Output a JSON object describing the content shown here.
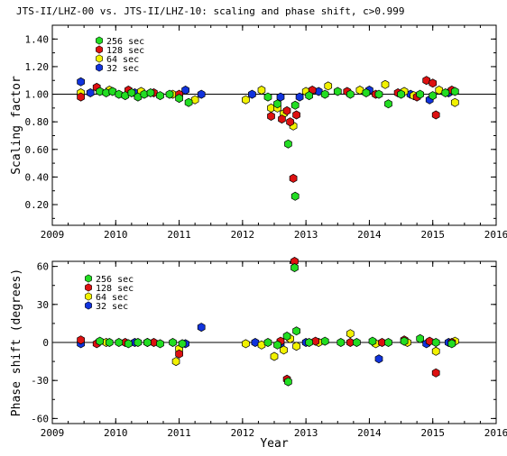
{
  "title": "JTS-II/LHZ-00 vs. JTS-II/LHZ-10: scaling and phase shift, c>0.999",
  "colors": {
    "256 sec": "#22dd22",
    "128 sec": "#dd1111",
    "64 sec": "#f2f200",
    "32 sec": "#1133dd",
    "outline": "#000000"
  },
  "chart_data": [
    {
      "type": "scatter",
      "ylabel": "Scaling factor",
      "xlabel": "",
      "xlim": [
        2009,
        2016
      ],
      "ylim": [
        0.05,
        1.5
      ],
      "xticks": [
        "2009",
        "2010",
        "2011",
        "2012",
        "2013",
        "2014",
        "2015",
        "2016"
      ],
      "yticks": [
        "0.20",
        "0.40",
        "0.60",
        "0.80",
        "1.00",
        "1.20",
        "1.40"
      ],
      "reference_line": 1.0,
      "legend": {
        "position": "top-left",
        "entries": [
          "256 sec",
          "128 sec",
          "64 sec",
          "32 sec"
        ]
      },
      "series": [
        {
          "name": "256 sec",
          "points": [
            [
              2009.75,
              1.02
            ],
            [
              2009.85,
              1.01
            ],
            [
              2009.95,
              1.02
            ],
            [
              2010.05,
              1.0
            ],
            [
              2010.15,
              0.99
            ],
            [
              2010.25,
              1.01
            ],
            [
              2010.35,
              0.98
            ],
            [
              2010.45,
              1.0
            ],
            [
              2010.55,
              1.01
            ],
            [
              2010.7,
              0.99
            ],
            [
              2010.85,
              1.0
            ],
            [
              2011.0,
              0.97
            ],
            [
              2011.15,
              0.94
            ],
            [
              2012.4,
              0.98
            ],
            [
              2012.55,
              0.93
            ],
            [
              2012.72,
              0.64
            ],
            [
              2012.83,
              0.92
            ],
            [
              2012.83,
              0.26
            ],
            [
              2013.05,
              0.99
            ],
            [
              2013.3,
              1.0
            ],
            [
              2013.5,
              1.02
            ],
            [
              2013.7,
              1.0
            ],
            [
              2013.95,
              1.01
            ],
            [
              2014.15,
              1.0
            ],
            [
              2014.3,
              0.93
            ],
            [
              2014.5,
              1.0
            ],
            [
              2014.8,
              1.0
            ],
            [
              2015.0,
              0.99
            ],
            [
              2015.2,
              1.01
            ],
            [
              2015.35,
              1.02
            ]
          ]
        },
        {
          "name": "128 sec",
          "points": [
            [
              2009.45,
              0.98
            ],
            [
              2009.7,
              1.05
            ],
            [
              2010.2,
              1.03
            ],
            [
              2010.6,
              1.01
            ],
            [
              2011.0,
              1.0
            ],
            [
              2012.45,
              0.84
            ],
            [
              2012.62,
              0.82
            ],
            [
              2012.7,
              0.88
            ],
            [
              2012.75,
              0.8
            ],
            [
              2012.8,
              0.39
            ],
            [
              2012.85,
              0.85
            ],
            [
              2013.1,
              1.03
            ],
            [
              2013.65,
              1.02
            ],
            [
              2014.1,
              1.0
            ],
            [
              2014.45,
              1.01
            ],
            [
              2014.75,
              0.98
            ],
            [
              2014.9,
              1.1
            ],
            [
              2015.0,
              1.08
            ],
            [
              2015.05,
              0.85
            ],
            [
              2015.3,
              1.03
            ]
          ]
        },
        {
          "name": "64 sec",
          "points": [
            [
              2009.45,
              1.01
            ],
            [
              2009.9,
              1.03
            ],
            [
              2010.4,
              1.02
            ],
            [
              2010.9,
              1.0
            ],
            [
              2011.25,
              0.96
            ],
            [
              2012.05,
              0.96
            ],
            [
              2012.3,
              1.03
            ],
            [
              2012.45,
              0.9
            ],
            [
              2012.55,
              0.9
            ],
            [
              2012.65,
              0.86
            ],
            [
              2012.8,
              0.77
            ],
            [
              2013.0,
              1.02
            ],
            [
              2013.35,
              1.06
            ],
            [
              2013.85,
              1.03
            ],
            [
              2014.25,
              1.07
            ],
            [
              2014.55,
              1.02
            ],
            [
              2014.7,
              0.99
            ],
            [
              2015.1,
              1.03
            ],
            [
              2015.35,
              0.94
            ]
          ]
        },
        {
          "name": "32 sec",
          "points": [
            [
              2009.45,
              1.09
            ],
            [
              2009.6,
              1.01
            ],
            [
              2010.3,
              1.01
            ],
            [
              2011.1,
              1.03
            ],
            [
              2011.35,
              1.0
            ],
            [
              2012.15,
              1.0
            ],
            [
              2012.6,
              0.98
            ],
            [
              2012.9,
              0.98
            ],
            [
              2013.2,
              1.02
            ],
            [
              2014.0,
              1.03
            ],
            [
              2014.65,
              1.0
            ],
            [
              2014.95,
              0.96
            ],
            [
              2015.25,
              1.01
            ]
          ]
        }
      ]
    },
    {
      "type": "scatter",
      "ylabel": "Phase shift (degrees)",
      "xlabel": "Year",
      "xlim": [
        2009,
        2016
      ],
      "ylim": [
        -64,
        64
      ],
      "xticks": [
        "2009",
        "2010",
        "2011",
        "2012",
        "2013",
        "2014",
        "2015",
        "2016"
      ],
      "yticks": [
        "-60",
        "-30",
        "0",
        "30",
        "60"
      ],
      "reference_line": 0,
      "legend": {
        "position": "top-left",
        "entries": [
          "256 sec",
          "128 sec",
          "64 sec",
          "32 sec"
        ]
      },
      "series": [
        {
          "name": "256 sec",
          "points": [
            [
              2009.75,
              1
            ],
            [
              2009.9,
              0
            ],
            [
              2010.05,
              0
            ],
            [
              2010.2,
              -1
            ],
            [
              2010.35,
              0
            ],
            [
              2010.5,
              0
            ],
            [
              2010.7,
              -1
            ],
            [
              2010.9,
              0
            ],
            [
              2011.05,
              -1
            ],
            [
              2012.4,
              0
            ],
            [
              2012.55,
              -2
            ],
            [
              2012.7,
              5
            ],
            [
              2012.72,
              -31
            ],
            [
              2012.82,
              59
            ],
            [
              2012.85,
              9
            ],
            [
              2013.05,
              0
            ],
            [
              2013.3,
              1
            ],
            [
              2013.55,
              0
            ],
            [
              2013.8,
              0
            ],
            [
              2014.05,
              1
            ],
            [
              2014.3,
              0
            ],
            [
              2014.55,
              1
            ],
            [
              2014.8,
              3
            ],
            [
              2015.05,
              0
            ],
            [
              2015.3,
              -1
            ]
          ]
        },
        {
          "name": "128 sec",
          "points": [
            [
              2009.45,
              2
            ],
            [
              2009.7,
              -1
            ],
            [
              2010.15,
              0
            ],
            [
              2010.6,
              0
            ],
            [
              2011.0,
              -9
            ],
            [
              2012.6,
              1
            ],
            [
              2012.7,
              -29
            ],
            [
              2012.82,
              64
            ],
            [
              2013.15,
              1
            ],
            [
              2013.7,
              0
            ],
            [
              2014.2,
              0
            ],
            [
              2014.55,
              2
            ],
            [
              2014.95,
              1
            ],
            [
              2015.05,
              -24
            ],
            [
              2015.3,
              0
            ]
          ]
        },
        {
          "name": "64 sec",
          "points": [
            [
              2009.85,
              0
            ],
            [
              2010.5,
              0
            ],
            [
              2010.95,
              -15
            ],
            [
              2011.0,
              -5
            ],
            [
              2012.05,
              -1
            ],
            [
              2012.3,
              -2
            ],
            [
              2012.5,
              -11
            ],
            [
              2012.65,
              -6
            ],
            [
              2012.75,
              3
            ],
            [
              2012.85,
              -3
            ],
            [
              2013.2,
              0
            ],
            [
              2013.7,
              7
            ],
            [
              2014.1,
              -1
            ],
            [
              2014.6,
              0
            ],
            [
              2015.05,
              -7
            ],
            [
              2015.35,
              1
            ]
          ]
        },
        {
          "name": "32 sec",
          "points": [
            [
              2009.45,
              -1
            ],
            [
              2010.3,
              0
            ],
            [
              2011.1,
              -1
            ],
            [
              2011.35,
              12
            ],
            [
              2012.2,
              0
            ],
            [
              2012.6,
              -1
            ],
            [
              2013.0,
              0
            ],
            [
              2014.15,
              -13
            ],
            [
              2014.9,
              -1
            ],
            [
              2015.25,
              0
            ]
          ]
        }
      ]
    }
  ]
}
